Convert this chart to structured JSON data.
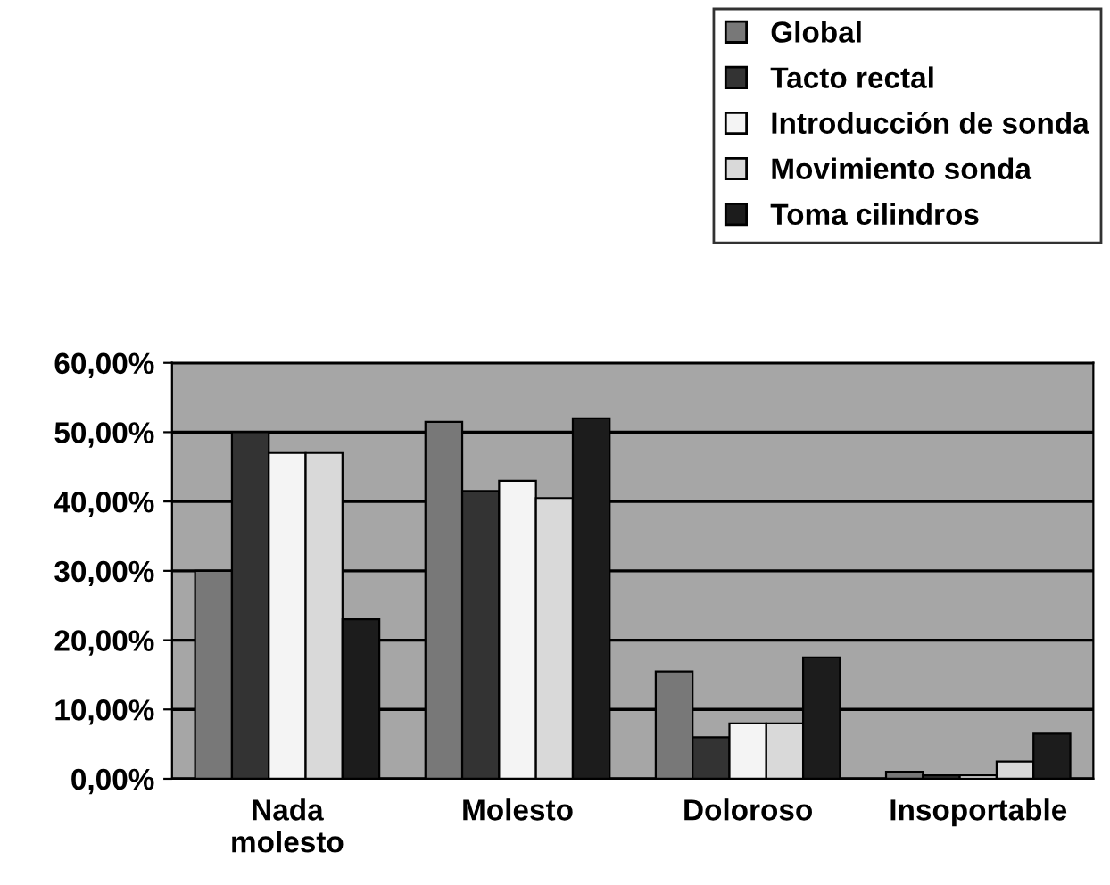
{
  "chart_data": {
    "type": "bar",
    "categories": [
      "Nada\nmolesto",
      "Molesto",
      "Doloroso",
      "Insoportable"
    ],
    "series": [
      {
        "name": "Global",
        "color": "#787878",
        "values": [
          30,
          51.5,
          15.5,
          1
        ]
      },
      {
        "name": "Tacto rectal",
        "color": "#333333",
        "values": [
          50,
          41.5,
          6,
          0.5
        ]
      },
      {
        "name": "Introducción de sonda",
        "color": "#f4f4f4",
        "values": [
          47,
          43,
          8,
          0.5
        ]
      },
      {
        "name": "Movimiento sonda",
        "color": "#d9d9d9",
        "values": [
          47,
          40.5,
          8,
          2.5
        ]
      },
      {
        "name": "Toma cilindros",
        "color": "#1c1c1c",
        "values": [
          23,
          52,
          17.5,
          6.5
        ]
      }
    ],
    "ylim": [
      0,
      60
    ],
    "yticks": [
      {
        "value": 0,
        "label": "0,00%"
      },
      {
        "value": 10,
        "label": "10,00%"
      },
      {
        "value": 20,
        "label": "20,00%"
      },
      {
        "value": 30,
        "label": "30,00%"
      },
      {
        "value": 40,
        "label": "40,00%"
      },
      {
        "value": 50,
        "label": "50,00%"
      },
      {
        "value": 60,
        "label": "60,00%"
      }
    ],
    "grid": "y",
    "legend": "top right"
  }
}
